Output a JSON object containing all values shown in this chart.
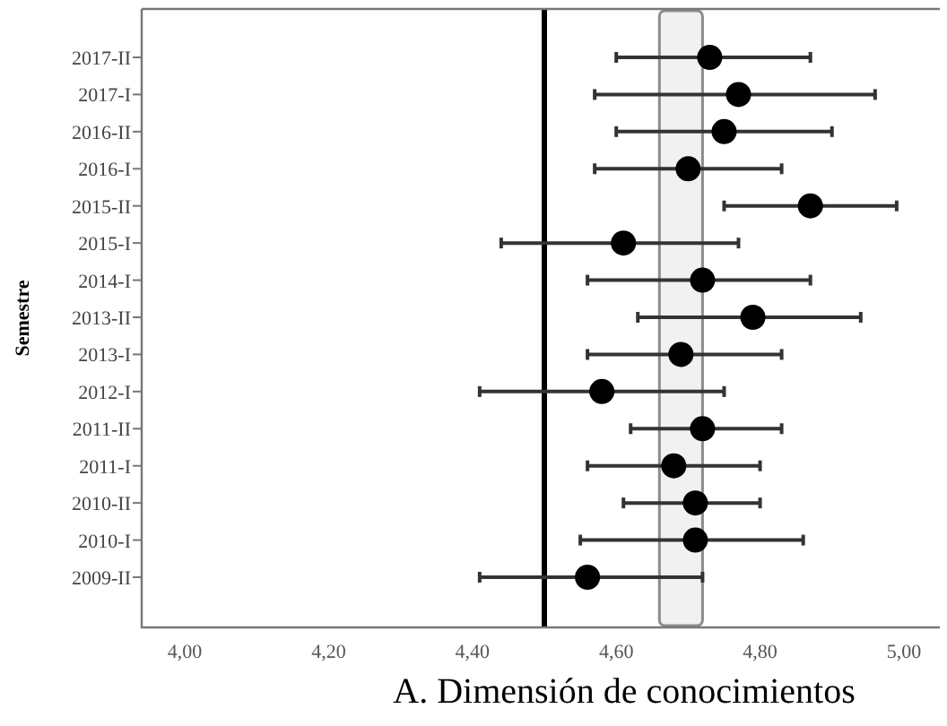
{
  "chart_data": {
    "type": "scatter",
    "orientation": "horizontal",
    "title": "A. Dimensión de conocimientos",
    "ylabel": "Semestre",
    "categories": [
      "2017-II",
      "2017-I",
      "2016-II",
      "2016-I",
      "2015-II",
      "2015-I",
      "2014-I",
      "2013-II",
      "2013-I",
      "2012-I",
      "2011-II",
      "2011-I",
      "2010-II",
      "2010-I",
      "2009-II"
    ],
    "values": [
      4.73,
      4.77,
      4.75,
      4.7,
      4.87,
      4.61,
      4.72,
      4.79,
      4.69,
      4.58,
      4.72,
      4.68,
      4.71,
      4.71,
      4.56
    ],
    "errors": [
      [
        4.6,
        4.87
      ],
      [
        4.57,
        4.96
      ],
      [
        4.6,
        4.9
      ],
      [
        4.57,
        4.83
      ],
      [
        4.75,
        4.99
      ],
      [
        4.44,
        4.77
      ],
      [
        4.56,
        4.87
      ],
      [
        4.63,
        4.94
      ],
      [
        4.56,
        4.83
      ],
      [
        4.41,
        4.75
      ],
      [
        4.62,
        4.83
      ],
      [
        4.56,
        4.8
      ],
      [
        4.61,
        4.8
      ],
      [
        4.55,
        4.86
      ],
      [
        4.41,
        4.72
      ]
    ],
    "color": "#000000",
    "marker": "circle",
    "grid": false,
    "xlim": [
      3.94,
      5.05
    ],
    "xticks": [
      {
        "value": 4,
        "label": "4,00"
      },
      {
        "value": 4.2,
        "label": "4,20"
      },
      {
        "value": 4.4,
        "label": "4,40"
      },
      {
        "value": 4.6,
        "label": "4,60"
      },
      {
        "value": 4.8,
        "label": "4,80"
      },
      {
        "value": 5,
        "label": "5,00"
      }
    ],
    "ref_lines": [
      {
        "axis": "x",
        "value": 4.5,
        "color": "#000000"
      }
    ],
    "bands": [
      {
        "axis": "x",
        "from": 4.66,
        "to": 4.72,
        "color": "#8c8c8c"
      }
    ]
  }
}
